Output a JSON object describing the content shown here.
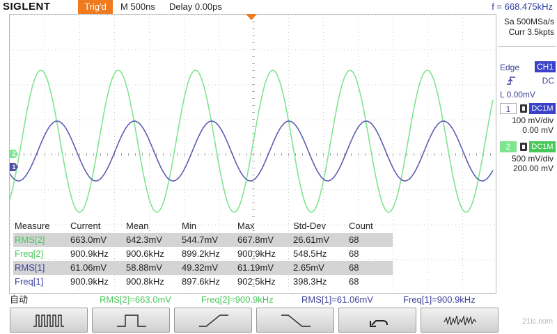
{
  "topbar": {
    "brand": "SIGLENT",
    "trigger_status": "Trig'd",
    "timebase": "M 500ns",
    "delay": "Delay 0.00ps",
    "frequency": "f = 668.475kHz"
  },
  "acquisition": {
    "sample_rate": "Sa 500MSa/s",
    "memory": "Curr 3.5kpts"
  },
  "trigger_panel": {
    "type": "Edge",
    "source": "CH1",
    "slope_icon": "rising-edge-icon",
    "coupling": "DC",
    "level": "L  0.00mV"
  },
  "channels": [
    {
      "number": "1",
      "coupling": "DC1M",
      "scale": "100 mV/div",
      "offset": "0.00 mV",
      "color": "#3b3f9a",
      "bandwidth_icon": "bandwidth-icon"
    },
    {
      "number": "2",
      "coupling": "DC1M",
      "scale": "500 mV/div",
      "offset": "200.00 mV",
      "color": "#49c85a",
      "bandwidth_icon": "bandwidth-icon"
    }
  ],
  "measure": {
    "headers": [
      "Measure",
      "Current",
      "Mean",
      "Min",
      "Max",
      "Std-Dev",
      "Count"
    ],
    "rows": [
      {
        "name": "RMS[2]",
        "current": "663.0mV",
        "mean": "642.3mV",
        "min": "544.7mV",
        "max": "667.8mV",
        "stddev": "26.61mV",
        "count": "68"
      },
      {
        "name": "Freq[2]",
        "current": "900.9kHz",
        "mean": "900.6kHz",
        "min": "899.2kHz",
        "max": "900.9kHz",
        "stddev": "548.5Hz",
        "count": "68"
      },
      {
        "name": "RMS[1]",
        "current": "61.06mV",
        "mean": "58.88mV",
        "min": "49.32mV",
        "max": "61.19mV",
        "stddev": "2.65mV",
        "count": "68"
      },
      {
        "name": "Freq[1]",
        "current": "900.9kHz",
        "mean": "900.8kHz",
        "min": "897.6kHz",
        "max": "902.5kHz",
        "stddev": "398.3Hz",
        "count": "68"
      }
    ]
  },
  "status": {
    "mode": "自动",
    "items": [
      "RMS[2]=663.0mV",
      "Freq[2]=900.9kHz",
      "RMS[1]=61.06mV",
      "Freq[1]=900.9kHz"
    ]
  },
  "softkeys": [
    "pulse-train-icon",
    "single-pulse-icon",
    "rise-edge-icon",
    "fall-edge-icon",
    "undo-icon",
    "noise-waveform-icon"
  ],
  "watermark": "21ic.com",
  "colors": {
    "accent": "#f07a1e",
    "ch1": "#4d4fa7",
    "ch2": "#7fe48f",
    "grid": "#c8c8c8"
  }
}
